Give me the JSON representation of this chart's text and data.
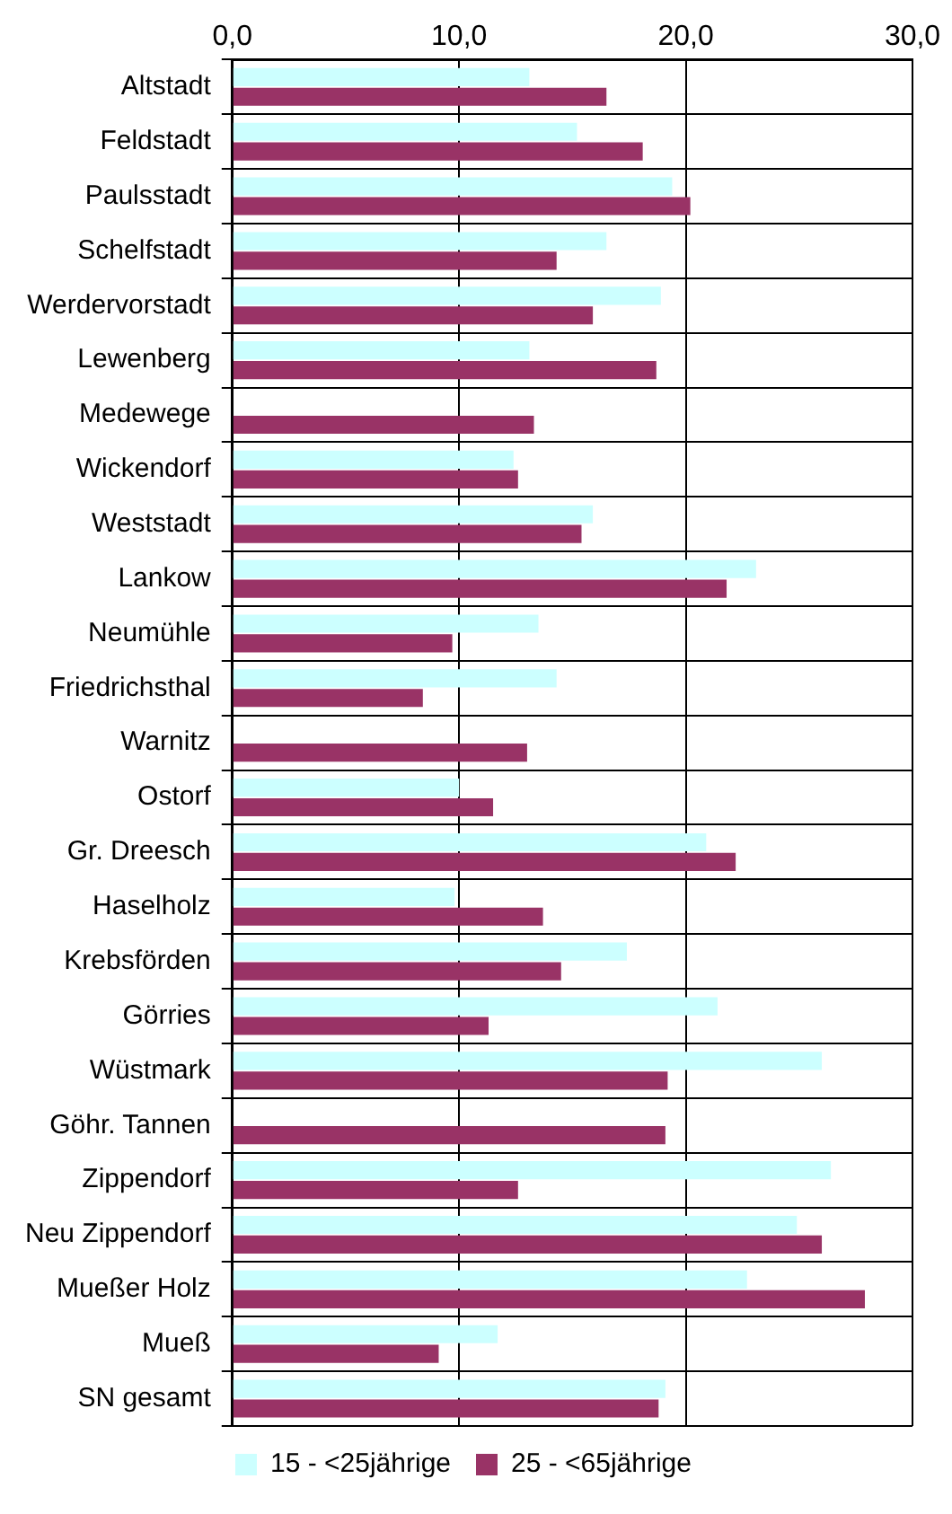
{
  "chart_data": {
    "type": "bar",
    "orientation": "horizontal",
    "categories": [
      "Altstadt",
      "Feldstadt",
      "Paulsstadt",
      "Schelfstadt",
      "Werdervorstadt",
      "Lewenberg",
      "Medewege",
      "Wickendorf",
      "Weststadt",
      "Lankow",
      "Neumühle",
      "Friedrichsthal",
      "Warnitz",
      "Ostorf",
      "Gr. Dreesch",
      "Haselholz",
      "Krebsförden",
      "Görries",
      "Wüstmark",
      "Göhr. Tannen",
      "Zippendorf",
      "Neu Zippendorf",
      "Mueßer Holz",
      "Mueß",
      "SN gesamt"
    ],
    "series": [
      {
        "name": "15 - <25jährige",
        "color": "#ccffff",
        "values": [
          13.1,
          15.2,
          19.4,
          16.5,
          18.9,
          13.1,
          null,
          12.4,
          15.9,
          23.1,
          13.5,
          14.3,
          null,
          10.0,
          20.9,
          9.8,
          17.4,
          21.4,
          26.0,
          null,
          26.4,
          24.9,
          22.7,
          11.7,
          19.1
        ]
      },
      {
        "name": "25 - <65jährige",
        "color": "#993366",
        "values": [
          16.5,
          18.1,
          20.2,
          14.3,
          15.9,
          18.7,
          13.3,
          12.6,
          15.4,
          21.8,
          9.7,
          8.4,
          13.0,
          11.5,
          22.2,
          13.7,
          14.5,
          11.3,
          19.2,
          19.1,
          12.6,
          26.0,
          27.9,
          9.1,
          18.8
        ]
      }
    ],
    "xlim": [
      0,
      30
    ],
    "xticks": [
      {
        "value": 0,
        "label": "0,0"
      },
      {
        "value": 10,
        "label": "10,0"
      },
      {
        "value": 20,
        "label": "20,0"
      },
      {
        "value": 30,
        "label": "30,0"
      }
    ],
    "grid": true,
    "legend": "bottom"
  }
}
